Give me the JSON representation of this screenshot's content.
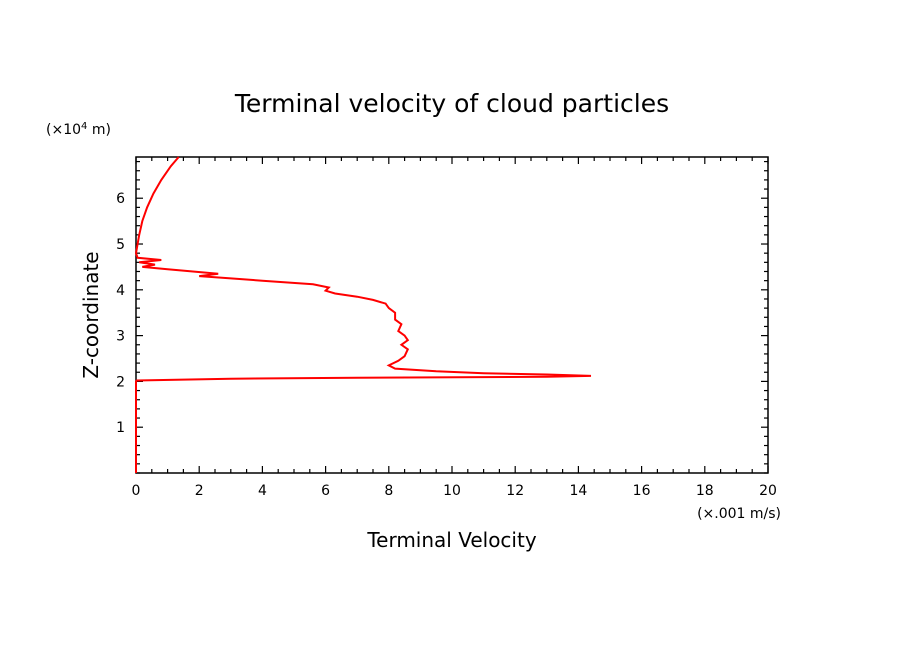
{
  "chart_data": {
    "type": "line",
    "title": "Terminal velocity of cloud particles",
    "xlabel": "Terminal Velocity",
    "ylabel": "Z-coordinate",
    "x_unit": "(×.001 m/s)",
    "y_unit_prefix": "(×10",
    "y_unit_exp": "4",
    "y_unit_suffix": " m)",
    "xlim": [
      0,
      20
    ],
    "ylim": [
      0,
      6.9
    ],
    "x_ticks": [
      "0",
      "2",
      "4",
      "6",
      "8",
      "10",
      "12",
      "14",
      "16",
      "18",
      "20"
    ],
    "y_ticks": [
      "1",
      "2",
      "3",
      "4",
      "5",
      "6"
    ],
    "grid": false,
    "line_color": "#ff0000",
    "series": [
      {
        "points": [
          [
            0.0,
            0.0
          ],
          [
            0.0,
            1.0
          ],
          [
            0.0,
            2.0
          ],
          [
            0.02,
            2.02
          ],
          [
            3.0,
            2.06
          ],
          [
            7.0,
            2.08
          ],
          [
            13.0,
            2.1
          ],
          [
            14.4,
            2.12
          ],
          [
            13.0,
            2.15
          ],
          [
            11.0,
            2.18
          ],
          [
            9.5,
            2.22
          ],
          [
            8.2,
            2.28
          ],
          [
            8.0,
            2.35
          ],
          [
            8.3,
            2.45
          ],
          [
            8.5,
            2.55
          ],
          [
            8.6,
            2.7
          ],
          [
            8.4,
            2.8
          ],
          [
            8.6,
            2.9
          ],
          [
            8.5,
            3.0
          ],
          [
            8.3,
            3.1
          ],
          [
            8.4,
            3.25
          ],
          [
            8.2,
            3.35
          ],
          [
            8.2,
            3.5
          ],
          [
            8.0,
            3.6
          ],
          [
            7.9,
            3.7
          ],
          [
            7.5,
            3.78
          ],
          [
            7.0,
            3.85
          ],
          [
            6.3,
            3.92
          ],
          [
            6.0,
            3.98
          ],
          [
            6.1,
            4.05
          ],
          [
            5.6,
            4.12
          ],
          [
            4.0,
            4.2
          ],
          [
            3.0,
            4.25
          ],
          [
            2.0,
            4.3
          ],
          [
            2.6,
            4.35
          ],
          [
            1.8,
            4.4
          ],
          [
            1.0,
            4.45
          ],
          [
            0.2,
            4.5
          ],
          [
            0.6,
            4.55
          ],
          [
            0.1,
            4.6
          ],
          [
            0.8,
            4.65
          ],
          [
            0.05,
            4.7
          ],
          [
            0.0,
            4.8
          ],
          [
            0.05,
            5.0
          ],
          [
            0.1,
            5.2
          ],
          [
            0.2,
            5.5
          ],
          [
            0.35,
            5.8
          ],
          [
            0.55,
            6.1
          ],
          [
            0.8,
            6.4
          ],
          [
            1.1,
            6.7
          ],
          [
            1.35,
            6.9
          ]
        ]
      }
    ]
  }
}
